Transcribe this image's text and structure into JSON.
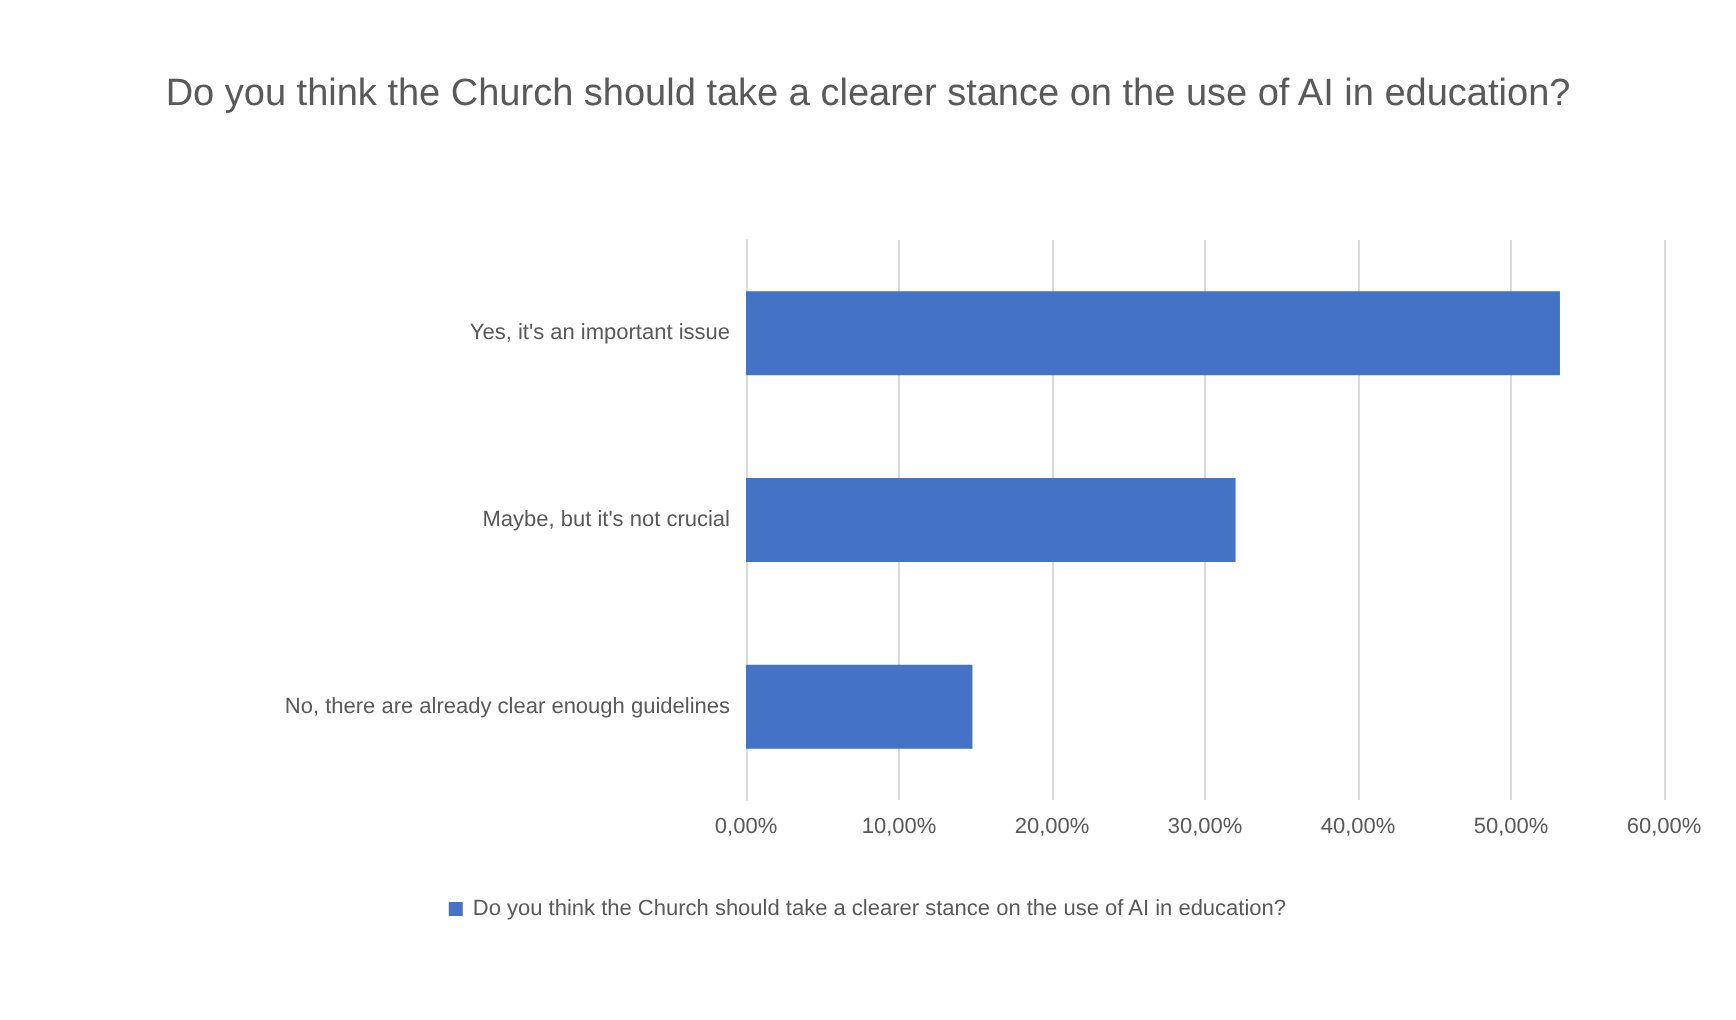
{
  "chart_data": {
    "type": "bar",
    "orientation": "horizontal",
    "title": "Do you think the Church should take a clearer stance on the use of AI in education?",
    "categories": [
      "Yes, it's an important issue",
      "Maybe, but it's not crucial",
      "No, there are already clear enough guidelines"
    ],
    "series": [
      {
        "name": "Do you think the Church should take a clearer stance on the use of AI in education?",
        "color": "#4472c4",
        "values": [
          53.2,
          32.0,
          14.8
        ]
      }
    ],
    "xlim": [
      0,
      60
    ],
    "xticks": [
      {
        "value": 0,
        "label": "0,00%"
      },
      {
        "value": 10,
        "label": "10,00%"
      },
      {
        "value": 20,
        "label": "20,00%"
      },
      {
        "value": 30,
        "label": "30,00%"
      },
      {
        "value": 40,
        "label": "40,00%"
      },
      {
        "value": 50,
        "label": "50,00%"
      },
      {
        "value": 60,
        "label": "60,00%"
      }
    ],
    "grid": "x",
    "legend": "bottom"
  }
}
